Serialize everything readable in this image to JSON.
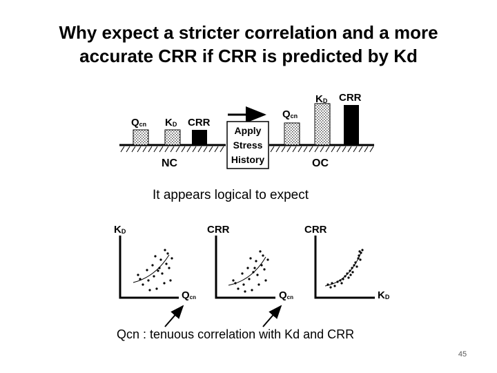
{
  "slide": {
    "title_line1": "Why expect a stricter correlation and a more",
    "title_line2": "accurate CRR if CRR is predicted by Kd",
    "page_number": "45"
  },
  "figure": {
    "top_panel": {
      "nc_bars": [
        {
          "label_main": "Q",
          "label_sub": "cn",
          "fill": "dotted"
        },
        {
          "label_main": "K",
          "label_sub": "D",
          "fill": "dotted"
        },
        {
          "label_main": "CRR",
          "label_sub": "",
          "fill": "solid"
        }
      ],
      "oc_bars": [
        {
          "label_main": "Q",
          "label_sub": "cn",
          "fill": "dotted"
        },
        {
          "label_main": "K",
          "label_sub": "D",
          "fill": "dotted"
        },
        {
          "label_main": "CRR",
          "label_sub": "",
          "fill": "solid"
        }
      ],
      "nc_label": "NC",
      "oc_label": "OC",
      "box_lines": [
        "Apply",
        "Stress",
        "History"
      ]
    },
    "caption_middle": "It appears logical to expect",
    "plots": [
      {
        "y_main": "K",
        "y_sub": "D",
        "x_main": "Q",
        "x_sub": "cn"
      },
      {
        "y_main": "CRR",
        "y_sub": "",
        "x_main": "Q",
        "x_sub": "cn"
      },
      {
        "y_main": "CRR",
        "y_sub": "",
        "x_main": "K",
        "x_sub": "D"
      }
    ],
    "caption_bottom": "Qcn : tenuous correlation with Kd and CRR"
  },
  "colors": {
    "ink": "#000000",
    "stipple": "#b8b8b8",
    "page_number": "#595959"
  }
}
